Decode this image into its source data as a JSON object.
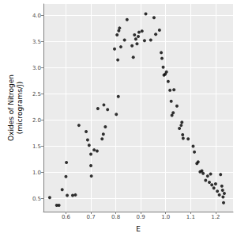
{
  "chart_data": {
    "type": "scatter",
    "x_label": "E",
    "y_label": "Oxides of Nitrogen\n(micrograms/J)",
    "color": "#000000",
    "marker": "circle",
    "grid": true,
    "xlim": [
      0.51,
      1.27
    ],
    "ylim": [
      0.25,
      4.22
    ],
    "xticks": [
      0.6,
      0.7,
      0.8,
      0.9,
      {
        "value": 1,
        "label": "1.0"
      },
      1.1,
      1.2
    ],
    "yticks": [
      0.5,
      {
        "value": 1,
        "label": "1.0"
      },
      1.5,
      {
        "value": 2,
        "label": "2.0"
      },
      2.5,
      {
        "value": 3,
        "label": "3.0"
      },
      3.5,
      {
        "value": 4,
        "label": "4.0"
      }
    ],
    "x": [
      0.535,
      0.563,
      0.572,
      0.585,
      0.6,
      0.602,
      0.605,
      0.627,
      0.638,
      0.652,
      0.681,
      0.687,
      0.693,
      0.7,
      0.7,
      0.702,
      0.713,
      0.725,
      0.728,
      0.745,
      0.75,
      0.752,
      0.758,
      0.767,
      0.795,
      0.802,
      0.805,
      0.808,
      0.81,
      0.812,
      0.815,
      0.82,
      0.835,
      0.845,
      0.865,
      0.87,
      0.875,
      0.88,
      0.885,
      0.89,
      0.893,
      0.905,
      0.915,
      0.92,
      0.94,
      0.953,
      0.96,
      0.975,
      0.982,
      0.985,
      0.99,
      0.993,
      0.998,
      1.003,
      1.01,
      1.017,
      1.022,
      1.025,
      1.03,
      1.033,
      1.045,
      1.055,
      1.062,
      1.065,
      1.068,
      1.07,
      1.09,
      1.11,
      1.115,
      1.125,
      1.13,
      1.138,
      1.145,
      1.15,
      1.16,
      1.168,
      1.175,
      1.18,
      1.185,
      1.193,
      1.2,
      1.207,
      1.215,
      1.22,
      1.225,
      1.228,
      1.23,
      1.232,
      1.235
    ],
    "values": [
      0.52,
      0.37,
      0.37,
      0.67,
      0.92,
      1.19,
      0.56,
      0.56,
      0.57,
      1.9,
      1.78,
      1.62,
      1.52,
      1.35,
      1.13,
      0.93,
      1.43,
      1.41,
      2.22,
      1.64,
      1.73,
      2.29,
      1.87,
      2.2,
      3.36,
      2.11,
      3.63,
      3.15,
      2.45,
      3.71,
      3.76,
      3.4,
      3.53,
      3.92,
      3.42,
      3.2,
      3.63,
      3.55,
      3.46,
      3.6,
      3.68,
      3.7,
      3.52,
      4.03,
      3.53,
      3.96,
      3.64,
      3.72,
      3.29,
      3.18,
      3.01,
      2.86,
      2.88,
      2.92,
      2.74,
      2.57,
      2.36,
      2.09,
      2.14,
      2.58,
      2.27,
      1.84,
      1.9,
      1.96,
      1.72,
      1.65,
      1.64,
      1.5,
      1.39,
      1.17,
      1.2,
      1.01,
      1.03,
      0.98,
      0.85,
      0.93,
      0.81,
      0.97,
      0.76,
      0.7,
      0.78,
      0.64,
      0.57,
      0.96,
      0.74,
      0.66,
      0.53,
      0.42,
      0.6
    ]
  }
}
